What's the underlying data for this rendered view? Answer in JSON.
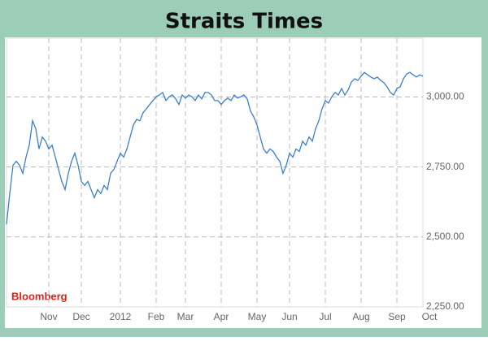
{
  "chart_data": {
    "type": "line",
    "title": "Straits Times",
    "source": "Bloomberg",
    "series": [
      {
        "color": "#3a7fd5",
        "values": [
          2545,
          2655,
          2756,
          2770,
          2756,
          2727,
          2785,
          2828,
          2915,
          2886,
          2814,
          2857,
          2842,
          2814,
          2828,
          2785,
          2741,
          2698,
          2669,
          2727,
          2770,
          2799,
          2756,
          2698,
          2684,
          2698,
          2669,
          2640,
          2669,
          2655,
          2684,
          2669,
          2727,
          2741,
          2770,
          2799,
          2785,
          2814,
          2857,
          2900,
          2920,
          2915,
          2944,
          2958,
          2973,
          2987,
          3001,
          3007,
          3016,
          2987,
          3001,
          3007,
          2993,
          2973,
          3007,
          2996,
          3007,
          3001,
          2987,
          3007,
          2993,
          3016,
          3016,
          3007,
          2987,
          2987,
          2973,
          2987,
          2996,
          2987,
          3007,
          2996,
          3001,
          3007,
          2993,
          2949,
          2929,
          2900,
          2857,
          2814,
          2799,
          2814,
          2805,
          2785,
          2770,
          2727,
          2756,
          2799,
          2785,
          2814,
          2805,
          2842,
          2828,
          2857,
          2842,
          2886,
          2915,
          2958,
          2987,
          2978,
          3001,
          3016,
          3007,
          3030,
          3007,
          3025,
          3053,
          3065,
          3059,
          3074,
          3088,
          3079,
          3071,
          3065,
          3071,
          3059,
          3051,
          3036,
          3016,
          3007,
          3030,
          3036,
          3065,
          3082,
          3088,
          3079,
          3071,
          3079,
          3074
        ]
      }
    ],
    "xlim": [
      0,
      130
    ],
    "xticks": [
      {
        "value": 13,
        "label": "Nov"
      },
      {
        "value": 23,
        "label": "Dec"
      },
      {
        "value": 35,
        "label": "2012"
      },
      {
        "value": 46,
        "label": "Feb"
      },
      {
        "value": 55,
        "label": "Mar"
      },
      {
        "value": 66,
        "label": "Apr"
      },
      {
        "value": 77,
        "label": "May"
      },
      {
        "value": 87,
        "label": "Jun"
      },
      {
        "value": 98,
        "label": "Jul"
      },
      {
        "value": 109,
        "label": "Aug"
      },
      {
        "value": 120,
        "label": "Sep"
      },
      {
        "value": 130,
        "label": "Oct"
      }
    ],
    "ylim": [
      2250,
      3210
    ],
    "yticks": [
      {
        "value": 2250,
        "label": "2,250.00"
      },
      {
        "value": 2500,
        "label": "2,500.00"
      },
      {
        "value": 2750,
        "label": "2,750.00"
      },
      {
        "value": 3000,
        "label": "3,000.00"
      }
    ],
    "grid": true
  }
}
